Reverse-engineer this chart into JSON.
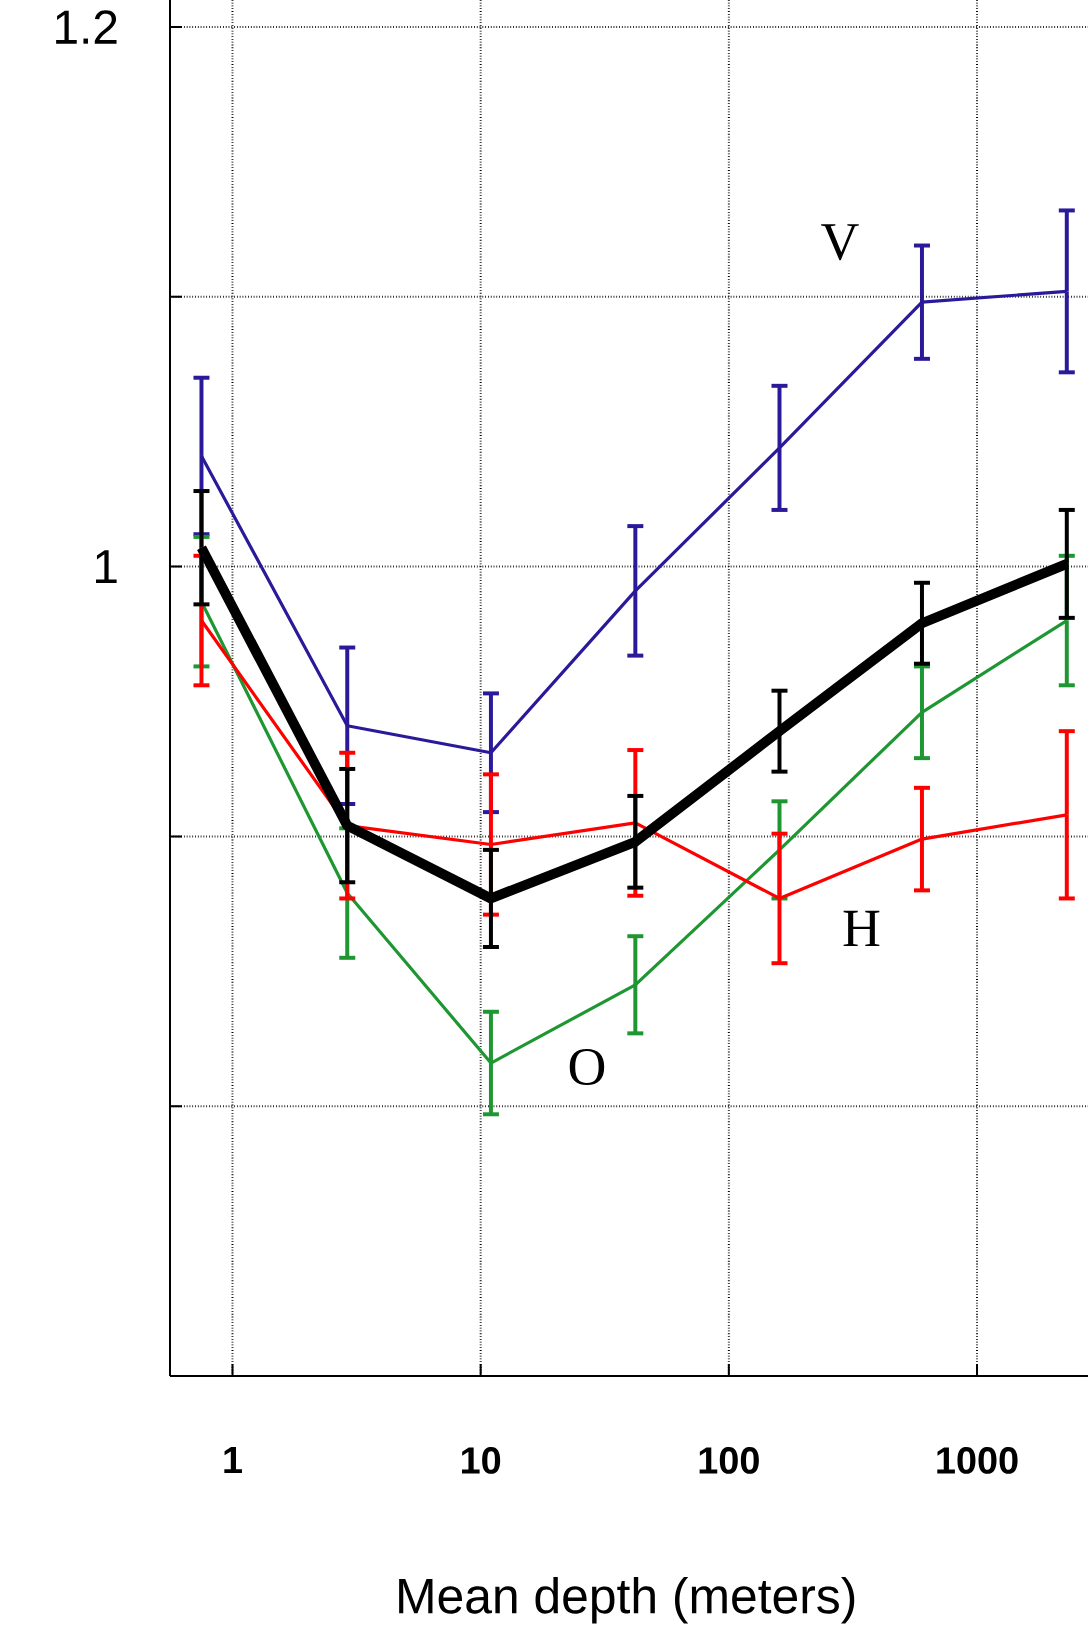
{
  "chart_data": {
    "type": "line",
    "xlabel": "Mean depth (meters)",
    "log": "x",
    "grid": true,
    "marker": "none",
    "line_style": "solid",
    "x": [
      0.75,
      2.9,
      11,
      42,
      160,
      600,
      2300
    ],
    "xlim": [
      0.56,
      2800
    ],
    "xticks": [
      1,
      10,
      100,
      1000
    ],
    "ylim": [
      0.7,
      1.21
    ],
    "yticks": [
      {
        "value": 0.8,
        "label": null
      },
      {
        "value": 0.9,
        "label": null
      },
      1,
      {
        "value": 1.1,
        "label": null
      },
      1.2
    ],
    "series": [
      {
        "name": "V",
        "color": "#2a1a9a",
        "values": [
          1.041,
          0.941,
          0.931,
          0.991,
          1.044,
          1.098,
          1.102
        ],
        "errors": [
          0.029,
          0.029,
          0.022,
          0.024,
          0.023,
          0.021,
          0.03
        ]
      },
      {
        "name": "O",
        "color": "#1e9632",
        "values": [
          0.987,
          0.879,
          0.816,
          0.845,
          0.895,
          0.946,
          0.98
        ],
        "errors": [
          0.024,
          0.024,
          0.019,
          0.018,
          0.018,
          0.017,
          0.024
        ]
      },
      {
        "name": "H",
        "color": "#ff0000",
        "values": [
          0.98,
          0.904,
          0.897,
          0.905,
          0.877,
          0.899,
          0.908
        ],
        "errors": [
          0.024,
          0.027,
          0.026,
          0.027,
          0.024,
          0.019,
          0.031
        ]
      },
      {
        "color": "#000000",
        "values": [
          1.007,
          0.904,
          0.877,
          0.898,
          0.939,
          0.979,
          1.001
        ],
        "errors": [
          0.021,
          0.021,
          0.018,
          0.017,
          0.015,
          0.015,
          0.02
        ]
      }
    ]
  }
}
